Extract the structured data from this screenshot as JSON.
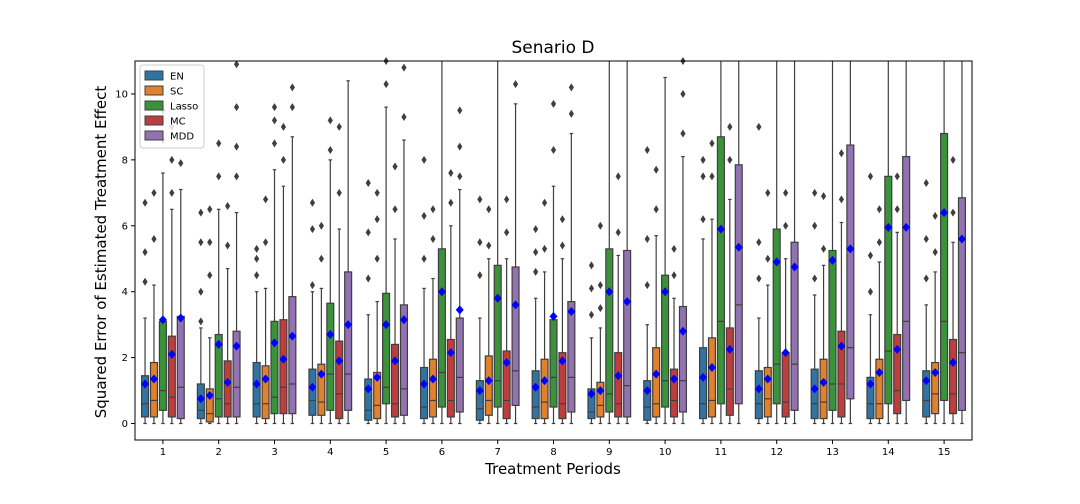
{
  "chart_data": {
    "type": "box",
    "title": "Senario D",
    "xlabel": "Treatment Periods",
    "ylabel": "Squared Error of Estimated Treatment Effect",
    "ylim": [
      -0.5,
      11.0
    ],
    "yticks": [
      0,
      2,
      4,
      6,
      8,
      10
    ],
    "categories": [
      "1",
      "2",
      "3",
      "4",
      "5",
      "6",
      "7",
      "8",
      "9",
      "10",
      "11",
      "12",
      "13",
      "14",
      "15"
    ],
    "legend": {
      "position": "top-left"
    },
    "mean_marker_color": "#0000ff",
    "series": [
      {
        "name": "EN",
        "color": "#3274a1",
        "q1": [
          0.2,
          0.15,
          0.2,
          0.25,
          0.1,
          0.15,
          0.1,
          0.15,
          0.15,
          0.1,
          0.15,
          0.15,
          0.15,
          0.15,
          0.2
        ],
        "median": [
          0.6,
          0.4,
          0.6,
          0.7,
          0.4,
          0.5,
          0.45,
          0.5,
          0.35,
          0.5,
          0.6,
          0.6,
          0.6,
          0.6,
          0.7
        ],
        "q3": [
          1.45,
          1.2,
          1.85,
          1.65,
          1.35,
          1.7,
          1.3,
          1.6,
          1.05,
          1.3,
          2.3,
          1.6,
          1.65,
          1.4,
          1.6
        ],
        "whisker_low": [
          0,
          0,
          0,
          0,
          0,
          0,
          0,
          0,
          0,
          0,
          0,
          0,
          0,
          0,
          0
        ],
        "whisker_high": [
          3.2,
          2.9,
          4.0,
          4.0,
          3.3,
          4.1,
          3.2,
          3.8,
          2.6,
          3.0,
          5.6,
          3.2,
          3.9,
          3.3,
          3.6
        ],
        "mean": [
          1.2,
          0.75,
          1.2,
          1.1,
          1.05,
          1.2,
          1.0,
          1.1,
          0.9,
          1.0,
          1.4,
          1.05,
          1.05,
          1.2,
          1.3
        ],
        "outliers": [
          [
            4.3,
            5.2,
            6.7
          ],
          [
            3.1,
            4.0,
            5.5,
            6.4
          ],
          [
            4.5,
            5.0,
            5.3
          ],
          [
            4.2,
            5.9,
            6.7
          ],
          [
            4.4,
            5.8,
            7.3
          ],
          [
            5.0,
            6.3,
            8.0
          ],
          [
            4.5,
            5.5,
            6.8
          ],
          [
            4.6,
            5.2,
            5.9
          ],
          [
            3.3,
            4.1,
            4.8
          ],
          [
            4.2,
            5.6,
            8.3
          ],
          [
            6.2,
            7.5,
            8.0
          ],
          [
            4.4,
            5.5,
            9.0
          ],
          [
            4.4,
            6.0,
            7.0
          ],
          [
            4.0,
            5.1,
            7.5
          ],
          [
            4.4,
            5.6,
            7.3
          ]
        ]
      },
      {
        "name": "SC",
        "color": "#e1812c",
        "q1": [
          0.2,
          0.05,
          0.15,
          0.25,
          0.15,
          0.2,
          0.25,
          0.15,
          0.2,
          0.2,
          0.2,
          0.2,
          0.15,
          0.15,
          0.3
        ],
        "median": [
          0.7,
          0.3,
          0.6,
          0.65,
          0.55,
          0.7,
          0.7,
          0.65,
          0.55,
          0.6,
          0.7,
          0.75,
          0.65,
          0.6,
          0.9
        ],
        "q3": [
          1.85,
          1.05,
          1.75,
          1.8,
          1.55,
          1.95,
          2.05,
          1.95,
          1.25,
          2.3,
          2.6,
          1.7,
          1.95,
          1.95,
          1.85
        ],
        "whisker_low": [
          0,
          0,
          0,
          0,
          0,
          0,
          0,
          0,
          0,
          0,
          0,
          0,
          0,
          0,
          0
        ],
        "whisker_high": [
          4.2,
          2.6,
          4.1,
          4.1,
          3.7,
          4.4,
          5.0,
          4.6,
          2.9,
          5.7,
          6.2,
          4.2,
          4.8,
          4.9,
          4.6
        ],
        "mean": [
          1.35,
          0.85,
          1.35,
          1.5,
          1.4,
          1.35,
          1.3,
          1.3,
          1.0,
          1.5,
          1.7,
          1.35,
          1.25,
          1.55,
          1.55
        ],
        "outliers": [
          [
            5.6,
            7.0
          ],
          [
            4.5,
            5.5,
            6.5
          ],
          [
            5.5,
            6.8
          ],
          [
            5.0,
            6.0
          ],
          [
            5.0,
            6.2,
            7.0
          ],
          [
            5.6,
            6.5
          ],
          [
            5.4,
            6.5
          ],
          [
            5.3,
            6.7
          ],
          [
            3.5,
            4.2,
            6.0
          ],
          [
            6.5,
            7.7
          ],
          [
            7.5,
            8.5
          ],
          [
            5.0,
            7.0
          ],
          [
            5.3,
            6.9
          ],
          [
            5.5,
            6.5
          ],
          [
            5.2,
            6.3
          ]
        ]
      },
      {
        "name": "Lasso",
        "color": "#3a923a",
        "q1": [
          0.4,
          0.2,
          0.3,
          0.4,
          0.6,
          0.5,
          0.5,
          0.5,
          0.35,
          0.5,
          0.6,
          0.6,
          0.4,
          0.6,
          0.7
        ],
        "median": [
          1.0,
          0.75,
          0.8,
          1.5,
          1.1,
          1.55,
          1.3,
          1.4,
          0.9,
          1.3,
          3.1,
          1.8,
          1.2,
          2.2,
          3.1
        ],
        "q3": [
          3.1,
          2.7,
          3.1,
          3.65,
          3.95,
          5.3,
          4.8,
          3.15,
          5.3,
          4.5,
          8.7,
          5.9,
          5.25,
          7.5,
          8.8
        ],
        "whisker_low": [
          0,
          0,
          0,
          0,
          0,
          0,
          0,
          0,
          0,
          0,
          0,
          0,
          0,
          0,
          0
        ],
        "whisker_high": [
          7.6,
          6.5,
          7.7,
          8.0,
          9.6,
          11.0,
          11.0,
          7.2,
          11.0,
          10.5,
          11.0,
          11.0,
          11.0,
          11.0,
          11.0
        ],
        "mean": [
          3.15,
          2.4,
          2.45,
          2.7,
          3.0,
          4.0,
          3.8,
          3.25,
          4.0,
          4.0,
          5.9,
          4.9,
          4.95,
          5.95,
          6.4
        ],
        "outliers": [
          [
            8.6,
            9.5
          ],
          [
            7.5,
            8.5
          ],
          [
            8.5,
            9.2,
            9.6
          ],
          [
            8.3,
            9.2
          ],
          [
            10.3,
            11.0
          ],
          [],
          [],
          [
            8.3,
            9.7
          ],
          [],
          [],
          [],
          [],
          [],
          [],
          []
        ]
      },
      {
        "name": "MC",
        "color": "#c03d3e",
        "q1": [
          0.2,
          0.2,
          0.3,
          0.15,
          0.2,
          0.2,
          0.15,
          0.15,
          0.2,
          0.2,
          0.25,
          0.2,
          0.2,
          0.3,
          0.3
        ],
        "median": [
          0.8,
          0.6,
          1.1,
          0.9,
          0.6,
          0.7,
          0.7,
          0.6,
          0.6,
          0.7,
          1.05,
          0.65,
          1.2,
          1.0,
          0.9
        ],
        "q3": [
          2.65,
          1.9,
          3.15,
          2.5,
          2.4,
          2.55,
          2.2,
          2.15,
          2.15,
          1.65,
          2.9,
          2.15,
          2.8,
          2.7,
          2.55
        ],
        "whisker_low": [
          0,
          0,
          0,
          0,
          0,
          0,
          0,
          0,
          0,
          0,
          0,
          0,
          0,
          0,
          0
        ],
        "whisker_high": [
          6.5,
          4.7,
          7.2,
          5.9,
          5.6,
          6.0,
          5.0,
          5.0,
          5.1,
          3.8,
          6.8,
          5.0,
          6.1,
          5.8,
          5.5
        ],
        "mean": [
          2.1,
          1.25,
          1.95,
          1.9,
          1.9,
          2.15,
          1.85,
          1.9,
          1.45,
          1.35,
          2.25,
          2.15,
          2.35,
          2.25,
          1.85
        ],
        "outliers": [
          [
            7.0,
            8.0,
            9.0
          ],
          [
            5.4,
            6.6
          ],
          [
            8.0,
            9.0
          ],
          [
            7.0,
            9.0
          ],
          [
            6.5,
            7.8
          ],
          [
            6.7,
            7.6
          ],
          [
            5.8,
            6.8
          ],
          [
            5.4,
            6.2
          ],
          [
            5.8,
            7.5
          ],
          [
            4.5,
            5.3
          ],
          [
            8.0,
            9.0
          ],
          [
            6.0,
            7.0
          ],
          [
            6.8,
            8.2
          ],
          [
            6.5,
            7.5
          ],
          [
            6.4,
            8.0
          ]
        ]
      },
      {
        "name": "MDD",
        "color": "#9372b2",
        "q1": [
          0.15,
          0.2,
          0.3,
          0.4,
          0.25,
          0.35,
          0.55,
          0.35,
          0.2,
          0.35,
          0.6,
          0.4,
          0.75,
          0.7,
          0.4
        ],
        "median": [
          1.1,
          1.1,
          1.2,
          1.5,
          1.05,
          1.4,
          1.6,
          1.4,
          1.15,
          1.3,
          3.6,
          1.8,
          2.3,
          3.1,
          2.15
        ],
        "q3": [
          3.25,
          2.8,
          3.85,
          4.6,
          3.6,
          3.2,
          4.75,
          3.7,
          5.25,
          3.55,
          7.85,
          5.5,
          8.45,
          8.1,
          6.85
        ],
        "whisker_low": [
          0,
          0,
          0,
          0,
          0,
          0,
          0,
          0,
          0,
          0,
          0,
          0,
          0,
          0,
          0
        ],
        "whisker_high": [
          7.1,
          6.4,
          8.7,
          10.4,
          8.6,
          7.1,
          9.7,
          8.8,
          11.0,
          8.1,
          11.0,
          11.0,
          11.0,
          11.0,
          11.0
        ],
        "mean": [
          3.2,
          2.35,
          2.65,
          3.0,
          3.15,
          3.45,
          3.6,
          3.4,
          3.7,
          2.8,
          5.35,
          4.75,
          5.3,
          5.95,
          5.6
        ],
        "outliers": [
          [
            7.9,
            9.6
          ],
          [
            7.5,
            8.4,
            9.6,
            10.9
          ],
          [
            9.6,
            10.2
          ],
          [],
          [
            9.3,
            10.8
          ],
          [
            7.5,
            8.4,
            9.5
          ],
          [
            10.3
          ],
          [
            9.4,
            10.2
          ],
          [],
          [
            8.8,
            10.0,
            11.0
          ],
          [],
          [],
          [],
          [],
          []
        ]
      }
    ]
  }
}
